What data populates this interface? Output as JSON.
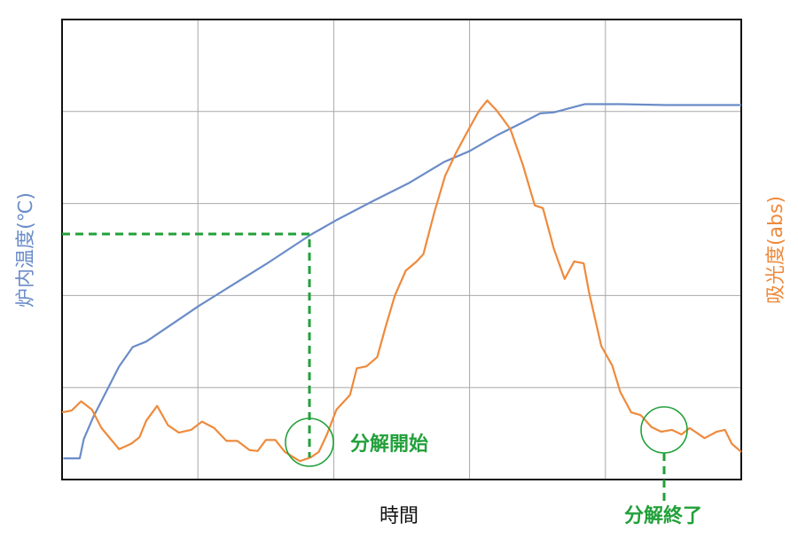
{
  "chart_data": {
    "type": "line",
    "x_label": "時間",
    "y_label": "炉内温度(℃)",
    "y2_label": "吸光度(abs)",
    "xlim": [
      0,
      5
    ],
    "xticks": [
      1,
      2,
      3,
      4
    ],
    "ylim": [
      0,
      5
    ],
    "yticks": [
      1,
      2,
      3,
      4
    ],
    "y2lim": [
      0,
      5
    ],
    "grid": true,
    "series": [
      {
        "name": "炉内温度",
        "color": "#6a8cc8",
        "x": [
          0.01,
          0.13,
          0.16,
          0.23,
          0.33,
          0.42,
          0.52,
          0.62,
          0.72,
          1.01,
          1.5,
          1.83,
          2.02,
          2.28,
          2.55,
          2.81,
          3.0,
          3.2,
          3.39,
          3.52,
          3.62,
          3.72,
          3.85,
          4.11,
          4.44,
          4.77,
          5.0
        ],
        "values": [
          0.23,
          0.23,
          0.44,
          0.68,
          0.97,
          1.23,
          1.44,
          1.5,
          1.6,
          1.89,
          2.34,
          2.66,
          2.82,
          3.02,
          3.22,
          3.45,
          3.57,
          3.74,
          3.88,
          3.98,
          3.99,
          4.03,
          4.08,
          4.08,
          4.07,
          4.07,
          4.07
        ]
      },
      {
        "name": "吸光度",
        "color": "#ee8a3c",
        "axis": "y2",
        "x": [
          0.0,
          0.07,
          0.14,
          0.22,
          0.29,
          0.42,
          0.51,
          0.57,
          0.62,
          0.7,
          0.78,
          0.86,
          0.95,
          1.03,
          1.12,
          1.21,
          1.29,
          1.38,
          1.44,
          1.5,
          1.57,
          1.64,
          1.75,
          1.83,
          1.89,
          1.95,
          2.02,
          2.12,
          2.17,
          2.24,
          2.32,
          2.38,
          2.45,
          2.53,
          2.61,
          2.66,
          2.74,
          2.82,
          2.9,
          2.98,
          3.07,
          3.13,
          3.2,
          3.3,
          3.39,
          3.48,
          3.54,
          3.62,
          3.7,
          3.77,
          3.84,
          3.88,
          3.97,
          4.05,
          4.11,
          4.19,
          4.26,
          4.34,
          4.41,
          4.49,
          4.56,
          4.62,
          4.73,
          4.82,
          4.88,
          4.93,
          5.0
        ],
        "values": [
          0.73,
          0.75,
          0.85,
          0.76,
          0.56,
          0.33,
          0.39,
          0.46,
          0.64,
          0.8,
          0.59,
          0.51,
          0.54,
          0.63,
          0.56,
          0.42,
          0.42,
          0.32,
          0.31,
          0.43,
          0.43,
          0.3,
          0.2,
          0.24,
          0.3,
          0.49,
          0.76,
          0.92,
          1.21,
          1.23,
          1.33,
          1.65,
          2.0,
          2.27,
          2.37,
          2.45,
          2.9,
          3.3,
          3.55,
          3.77,
          4.01,
          4.12,
          4.01,
          3.81,
          3.43,
          2.98,
          2.95,
          2.51,
          2.18,
          2.37,
          2.35,
          2.03,
          1.45,
          1.24,
          0.95,
          0.73,
          0.7,
          0.57,
          0.52,
          0.54,
          0.49,
          0.56,
          0.45,
          0.52,
          0.54,
          0.39,
          0.3
        ]
      }
    ],
    "annotations": [
      {
        "text": "分解開始"
      },
      {
        "text": "分解終了"
      }
    ]
  }
}
